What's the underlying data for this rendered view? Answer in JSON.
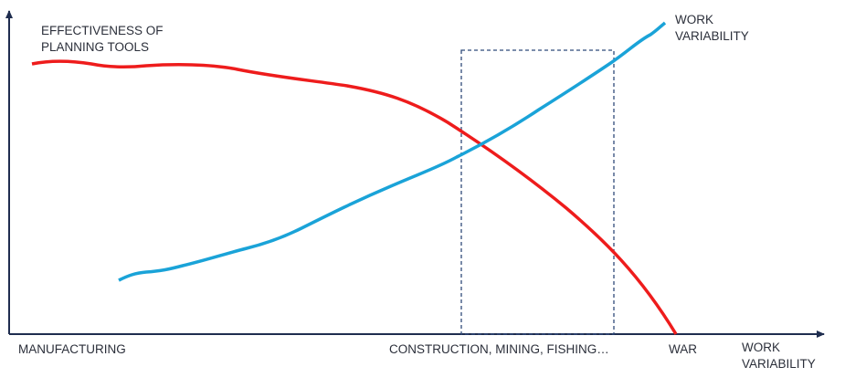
{
  "labels": {
    "effectiveness": [
      "EFFECTIVENESS OF",
      "PLANNING TOOLS"
    ],
    "work_variability_curve": [
      "WORK",
      "VARIABILITY"
    ]
  },
  "x_axis": {
    "categories": [
      "MANUFACTURING",
      "CONSTRUCTION, MINING, FISHING…",
      "WAR"
    ],
    "title": [
      "WORK",
      "VARIABILITY"
    ]
  }
}
